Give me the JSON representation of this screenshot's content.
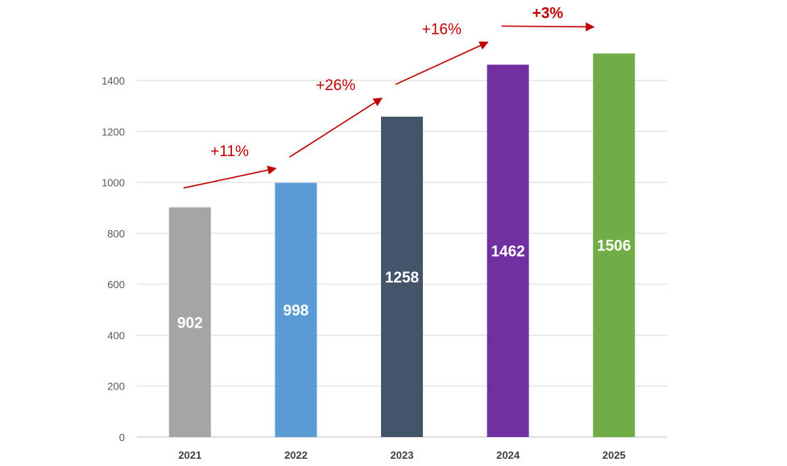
{
  "chart_data": {
    "type": "bar",
    "title": "",
    "xlabel": "",
    "ylabel": "",
    "categories": [
      "2021",
      "2022",
      "2023",
      "2024",
      "2025"
    ],
    "values": [
      902,
      998,
      1258,
      1462,
      1506
    ],
    "value_labels": [
      "902",
      "998",
      "1258",
      "1462",
      "1506"
    ],
    "colors": [
      "#a5a5a5",
      "#5b9bd5",
      "#44546a",
      "#7030a0",
      "#70ad47"
    ],
    "ylim": [
      0,
      1400
    ],
    "yticks": [
      0,
      200,
      400,
      600,
      800,
      1000,
      1200,
      1400
    ],
    "ytick_labels": [
      "0",
      "200",
      "400",
      "600",
      "800",
      "1000",
      "1200",
      "1400"
    ],
    "grid": true,
    "legend": "none",
    "annotations": [
      {
        "text": "+11%",
        "from": "2021",
        "to": "2022",
        "bold": false
      },
      {
        "text": "+26%",
        "from": "2022",
        "to": "2023",
        "bold": false
      },
      {
        "text": "+16%",
        "from": "2023",
        "to": "2024",
        "bold": false
      },
      {
        "text": "+3%",
        "from": "2024",
        "to": "2025",
        "bold": true
      }
    ],
    "annotation_color": "#c00000"
  }
}
